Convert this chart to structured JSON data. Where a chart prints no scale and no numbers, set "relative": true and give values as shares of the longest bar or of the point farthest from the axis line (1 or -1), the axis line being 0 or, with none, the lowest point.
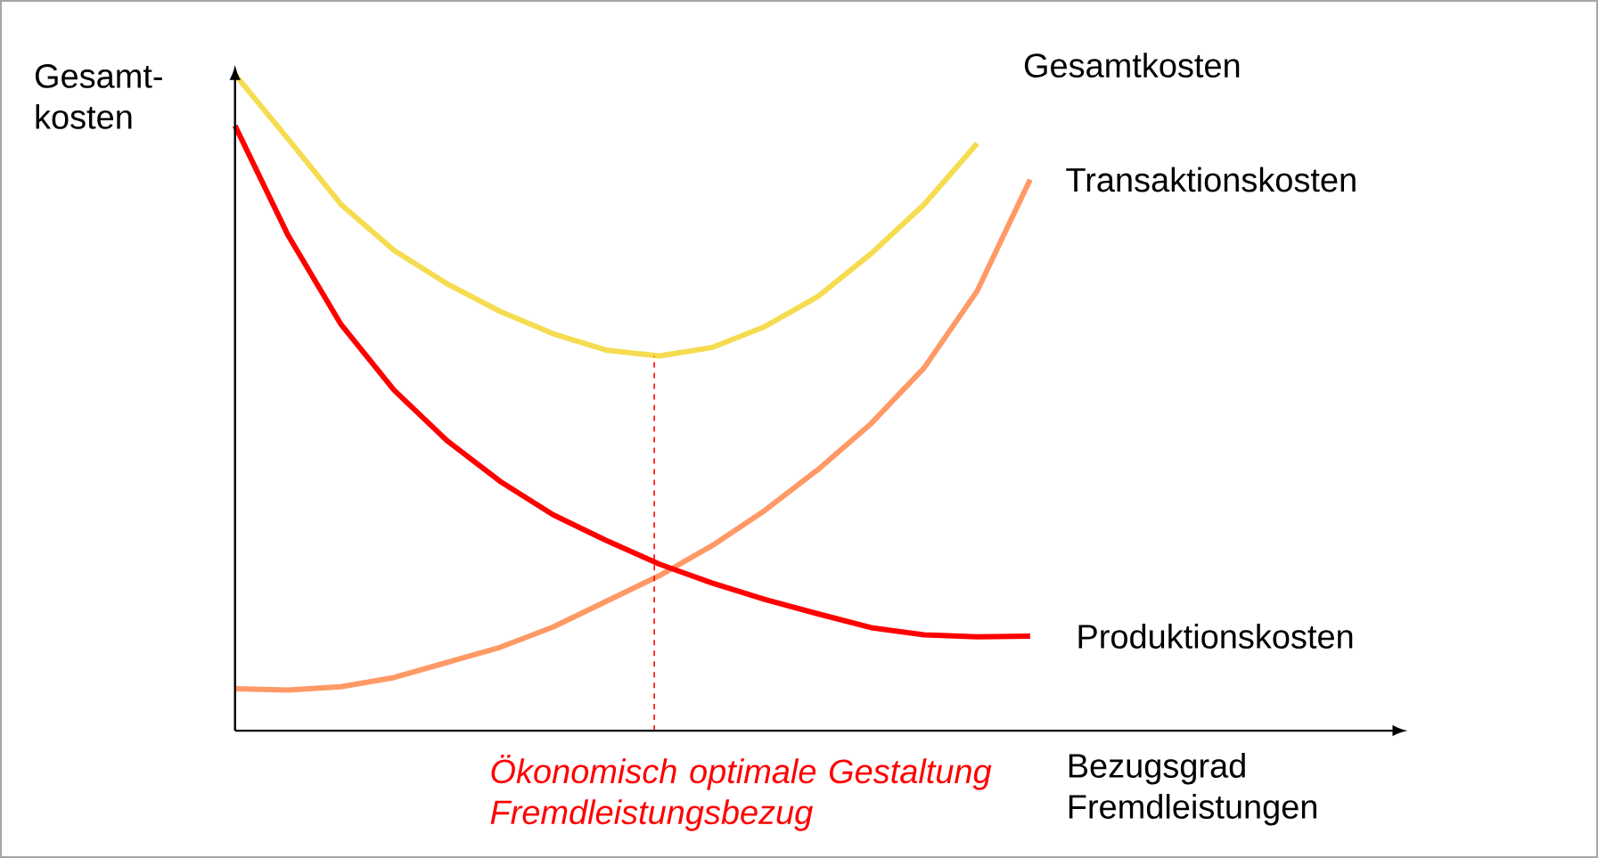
{
  "chart_data": {
    "type": "line",
    "relative": true,
    "ylabel": "Gesamt-kosten",
    "xlabel": "Bezugsgrad Fremdleistungen",
    "legend": false,
    "marker": "none",
    "line_style": "solid",
    "categories": [
      null,
      null,
      null,
      null,
      null,
      null,
      null,
      null,
      null,
      null,
      null,
      null,
      null,
      null,
      null,
      null
    ],
    "series": [
      {
        "name": "Gesamtkosten",
        "color": "#f5dc50",
        "values": [
          1.0,
          0.902,
          0.802,
          0.732,
          0.681,
          0.639,
          0.605,
          0.58,
          0.571,
          0.584,
          0.616,
          0.662,
          0.727,
          0.802,
          0.895,
          null
        ]
      },
      {
        "name": "Transaktionskosten",
        "color": "#ff9966",
        "values": [
          0.064,
          0.062,
          0.067,
          0.081,
          0.104,
          0.127,
          0.158,
          0.197,
          0.236,
          0.282,
          0.336,
          0.398,
          0.468,
          0.553,
          0.67,
          0.84
        ]
      },
      {
        "name": "Produktionskosten",
        "color": "#ff0000",
        "values": [
          0.922,
          0.755,
          0.619,
          0.519,
          0.442,
          0.38,
          0.329,
          0.29,
          0.254,
          0.225,
          0.2,
          0.178,
          0.157,
          0.146,
          0.143,
          0.144
        ]
      }
    ],
    "annotations": [
      "Ökonomisch optimale Gestaltung Fremdleistungsbezug"
    ]
  }
}
